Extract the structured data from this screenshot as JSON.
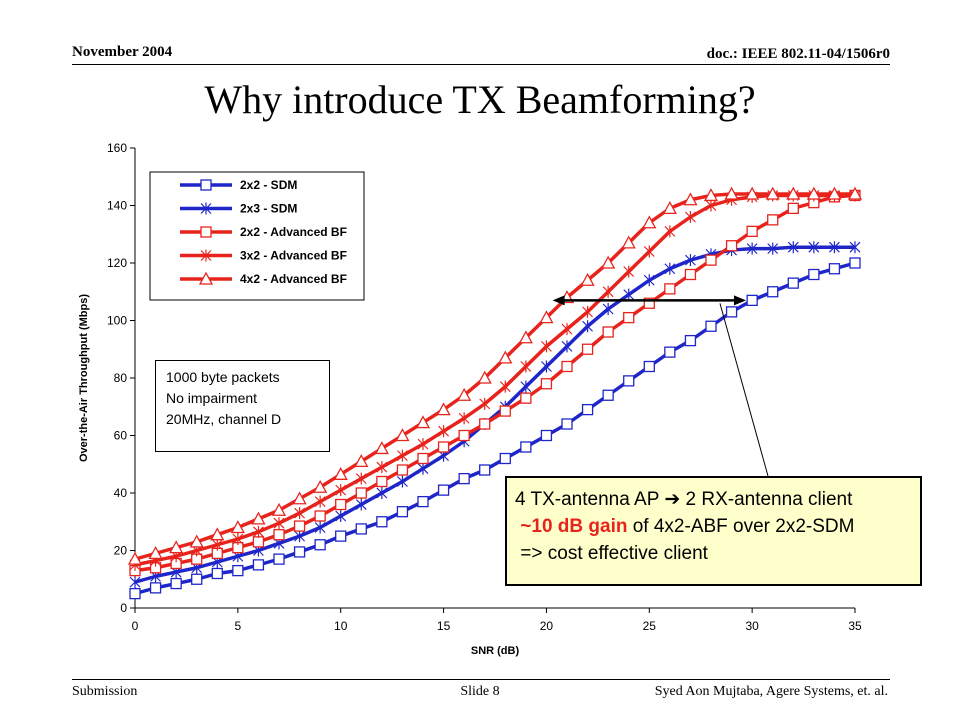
{
  "header": {
    "left": "November 2004",
    "right": "doc.: IEEE 802.11-04/1506r0"
  },
  "title": "Why introduce TX Beamforming?",
  "footer": {
    "left": "Submission",
    "center": "Slide 8",
    "right": "Syed Aon Mujtaba, Agere Systems, et. al."
  },
  "conditions": {
    "line1": "1000 byte packets",
    "line2": "No impairment",
    "line3": "20MHz, channel D"
  },
  "note": {
    "line1_part1": "4 TX-antenna AP",
    "arrow_glyph": "➔",
    "line1_part2": "2 RX-antenna client",
    "line2_highlight": "~10 dB gain",
    "line2_rest": "of 4x2-ABF over 2x2-SDM",
    "line3": "=> cost effective client"
  },
  "colors": {
    "blue": "#1f26c9",
    "red": "#e8231c",
    "note_bg": "#ffffcc"
  },
  "chart_data": {
    "type": "line",
    "xlabel": "SNR (dB)",
    "ylabel": "Over-the-Air Throughput (Mbps)",
    "xlim": [
      0,
      35
    ],
    "ylim": [
      0,
      160
    ],
    "xticks": [
      0,
      5,
      10,
      15,
      20,
      25,
      30,
      35
    ],
    "yticks": [
      0,
      20,
      40,
      60,
      80,
      100,
      120,
      140,
      160
    ],
    "grid": false,
    "legend_position": "top-left",
    "x": [
      0,
      1,
      2,
      3,
      4,
      5,
      6,
      7,
      8,
      9,
      10,
      11,
      12,
      13,
      14,
      15,
      16,
      17,
      18,
      19,
      20,
      21,
      22,
      23,
      24,
      25,
      26,
      27,
      28,
      29,
      30,
      31,
      32,
      33,
      34,
      35
    ],
    "series": [
      {
        "name": "2x2 - SDM",
        "color": "blue",
        "marker": "square",
        "values": [
          5,
          7,
          8.5,
          10,
          12,
          13,
          15,
          17,
          19.5,
          22,
          25,
          27.5,
          30,
          33.5,
          37,
          41,
          45,
          48,
          52,
          56,
          60,
          64,
          69,
          74,
          79,
          84,
          89,
          93,
          98,
          103,
          107,
          110,
          113,
          116,
          118,
          120
        ]
      },
      {
        "name": "2x3 - SDM",
        "color": "blue",
        "marker": "star",
        "values": [
          9,
          11,
          12.5,
          14,
          16,
          18,
          20,
          22.5,
          25,
          28,
          32,
          36,
          40,
          44,
          48.5,
          53,
          58,
          64,
          70,
          77,
          84,
          91,
          98,
          104,
          109,
          114,
          118,
          121,
          123,
          124.5,
          125,
          125,
          125.5,
          125.5,
          125.5,
          125.5
        ]
      },
      {
        "name": "2x2 - Advanced BF",
        "color": "red",
        "marker": "square",
        "values": [
          13,
          14,
          15.5,
          17,
          19,
          21,
          23,
          25.5,
          28.5,
          32,
          36,
          40,
          44,
          48,
          52,
          56,
          60,
          64,
          68.5,
          73,
          78,
          84,
          90,
          96,
          101,
          106,
          111,
          116,
          121,
          126,
          131,
          135,
          139,
          141,
          143,
          143.5
        ]
      },
      {
        "name": "3x2 - Advanced BF",
        "color": "red",
        "marker": "star",
        "values": [
          15,
          16.5,
          18,
          20,
          22,
          24,
          26.5,
          29.5,
          33,
          37,
          41,
          45,
          49,
          53,
          57,
          61.5,
          66,
          71,
          77,
          84,
          91,
          97,
          103,
          110,
          117,
          124,
          131,
          136,
          140,
          142,
          143,
          143.5,
          143.5,
          143.5,
          143.5,
          143.5
        ]
      },
      {
        "name": "4x2 - Advanced BF",
        "color": "red",
        "marker": "triangle",
        "values": [
          17,
          19,
          21,
          23,
          25.5,
          28,
          31,
          34,
          38,
          42,
          46.5,
          51,
          55.5,
          60,
          64.5,
          69,
          74,
          80,
          87,
          94,
          101,
          108,
          114,
          120,
          127,
          134,
          139,
          142,
          143.5,
          144,
          144,
          144,
          144,
          144,
          144,
          144
        ]
      }
    ],
    "annotation": {
      "arrow_y": 107,
      "arrow_x_from": 20.3,
      "arrow_x_to": 29.7
    }
  }
}
